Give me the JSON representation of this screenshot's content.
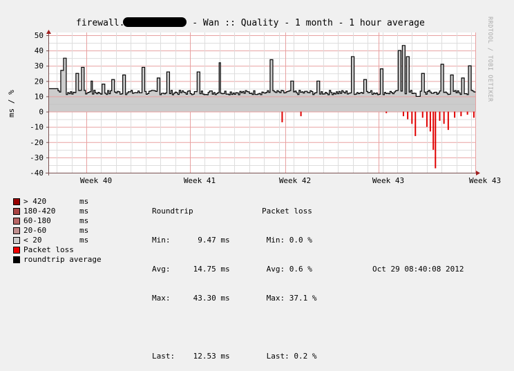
{
  "title": {
    "prefix": "firewall.",
    "suffix": " - Wan :: Quality - 1 month - 1 hour average"
  },
  "watermark": "RRDTOOL / TOBI OETIKER",
  "colors": {
    "background": "#f0f0f0",
    "plot_background": "#ffffff",
    "major_grid": "#e8a0a0",
    "minor_grid": "#dddddd",
    "axis": "#7a5050",
    "rtt_fill": "#cccccc",
    "rtt_line": "#000000",
    "packet_loss": "#e00000"
  },
  "legend": [
    {
      "label": "> 420",
      "unit": "ms",
      "color": "#990000"
    },
    {
      "label": "180-420",
      "unit": "ms",
      "color": "#aa4444"
    },
    {
      "label": "60-180",
      "unit": "ms",
      "color": "#b86666"
    },
    {
      "label": "20-60",
      "unit": "ms",
      "color": "#c09090"
    },
    {
      "label": "< 20",
      "unit": "ms",
      "color": "#cccccc"
    },
    {
      "label": "Packet loss",
      "unit": "",
      "color": "#ee0000"
    },
    {
      "label": "roundtrip average",
      "unit": "",
      "color": "#000000"
    }
  ],
  "stats": {
    "roundtrip": {
      "header": "Roundtrip",
      "min": "Min:      9.47 ms",
      "avg": "Avg:     14.75 ms",
      "max": "Max:     43.30 ms",
      "last": "Last:    12.53 ms"
    },
    "packet_loss": {
      "header": "Packet loss",
      "min": " Min: 0.0 %",
      "avg": " Avg: 0.6 %",
      "max": " Max: 37.1 %",
      "last": " Last: 0.2 %"
    }
  },
  "timestamp": "Oct 29 08:40:08 2012",
  "chart_data": {
    "type": "area",
    "title": "firewall.[redacted] - Wan :: Quality - 1 month - 1 hour average",
    "ylabel": "ms / %",
    "xlabel": "",
    "ylim": [
      -40,
      50
    ],
    "yticks": [
      50,
      40,
      30,
      20,
      10,
      0,
      -10,
      -20,
      -30,
      -40
    ],
    "xticks": [
      "Week 40",
      "Week 41",
      "Week 42",
      "Week 43",
      "Week 43"
    ],
    "grid": true,
    "legend_position": "bottom-left",
    "series": [
      {
        "name": "roundtrip average (ms)",
        "baseline": 12.5,
        "spikes": [
          {
            "x": 0.03,
            "y": 27
          },
          {
            "x": 0.037,
            "y": 35
          },
          {
            "x": 0.065,
            "y": 25
          },
          {
            "x": 0.08,
            "y": 29
          },
          {
            "x": 0.1,
            "y": 20
          },
          {
            "x": 0.128,
            "y": 18
          },
          {
            "x": 0.15,
            "y": 21
          },
          {
            "x": 0.175,
            "y": 24
          },
          {
            "x": 0.22,
            "y": 29
          },
          {
            "x": 0.255,
            "y": 22
          },
          {
            "x": 0.28,
            "y": 26
          },
          {
            "x": 0.35,
            "y": 26
          },
          {
            "x": 0.4,
            "y": 32
          },
          {
            "x": 0.52,
            "y": 34
          },
          {
            "x": 0.57,
            "y": 20
          },
          {
            "x": 0.63,
            "y": 20
          },
          {
            "x": 0.71,
            "y": 36
          },
          {
            "x": 0.74,
            "y": 21
          },
          {
            "x": 0.78,
            "y": 28
          },
          {
            "x": 0.82,
            "y": 40
          },
          {
            "x": 0.83,
            "y": 43.3
          },
          {
            "x": 0.84,
            "y": 36
          },
          {
            "x": 0.875,
            "y": 25
          },
          {
            "x": 0.92,
            "y": 31
          },
          {
            "x": 0.945,
            "y": 24
          },
          {
            "x": 0.97,
            "y": 22
          },
          {
            "x": 0.985,
            "y": 30
          }
        ],
        "min": 9.47,
        "avg": 14.75,
        "max": 43.3,
        "last": 12.53
      },
      {
        "name": "packet loss (%), plotted negative",
        "bars": [
          {
            "x": 0.546,
            "y": -7
          },
          {
            "x": 0.59,
            "y": -3
          },
          {
            "x": 0.79,
            "y": -1
          },
          {
            "x": 0.83,
            "y": -3
          },
          {
            "x": 0.84,
            "y": -5
          },
          {
            "x": 0.85,
            "y": -8
          },
          {
            "x": 0.858,
            "y": -16
          },
          {
            "x": 0.875,
            "y": -4
          },
          {
            "x": 0.885,
            "y": -10
          },
          {
            "x": 0.893,
            "y": -13
          },
          {
            "x": 0.9,
            "y": -25
          },
          {
            "x": 0.905,
            "y": -37.1
          },
          {
            "x": 0.915,
            "y": -6
          },
          {
            "x": 0.925,
            "y": -8
          },
          {
            "x": 0.935,
            "y": -12
          },
          {
            "x": 0.95,
            "y": -4
          },
          {
            "x": 0.965,
            "y": -3
          },
          {
            "x": 0.98,
            "y": -2
          },
          {
            "x": 0.995,
            "y": -4
          }
        ],
        "min": 0.0,
        "avg": 0.6,
        "max": 37.1,
        "last": 0.2
      }
    ]
  }
}
